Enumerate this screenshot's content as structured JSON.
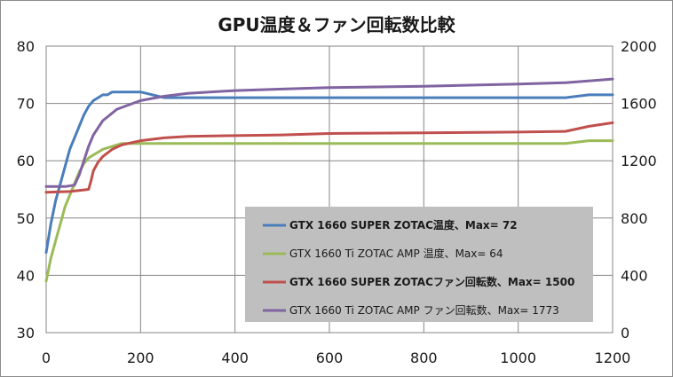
{
  "chart_data": {
    "type": "line",
    "title": "GPU温度＆ファン回転数比較",
    "x_range": [
      0,
      1200
    ],
    "x_ticks": [
      0,
      200,
      400,
      600,
      800,
      1000,
      1200
    ],
    "y_left_range": [
      30,
      80
    ],
    "y_left_ticks": [
      30,
      40,
      50,
      60,
      70,
      80
    ],
    "y_right_range": [
      0,
      2000
    ],
    "y_right_ticks": [
      0,
      400,
      800,
      1200,
      1600,
      2000
    ],
    "grid": true,
    "legend_placement": "bottom-right",
    "series": [
      {
        "name": "GTX 1660 SUPER ZOTAC温度、Max= 72",
        "axis": "left",
        "color": "#4a7ebb",
        "bold": true,
        "x": [
          0,
          10,
          20,
          30,
          40,
          50,
          60,
          70,
          80,
          90,
          100,
          110,
          120,
          130,
          140,
          150,
          160,
          200,
          250,
          300,
          400,
          600,
          800,
          1000,
          1100,
          1150,
          1200
        ],
        "values": [
          44,
          49,
          53,
          56,
          59,
          62,
          64,
          66,
          68,
          69.5,
          70.5,
          71,
          71.5,
          71.5,
          72,
          72,
          72,
          72,
          71,
          71,
          71,
          71,
          71,
          71,
          71,
          71.5,
          71.5
        ]
      },
      {
        "name": "GTX 1660 Ti ZOTAC AMP 温度、Max= 64",
        "axis": "left",
        "color": "#9bbb59",
        "bold": false,
        "x": [
          0,
          10,
          20,
          30,
          40,
          50,
          60,
          70,
          80,
          90,
          100,
          110,
          120,
          140,
          160,
          200,
          300,
          400,
          600,
          800,
          1000,
          1100,
          1150,
          1200
        ],
        "values": [
          39,
          43,
          46,
          49,
          52,
          54,
          56,
          58,
          59.5,
          60.5,
          61,
          61.5,
          62,
          62.5,
          63,
          63,
          63,
          63,
          63,
          63,
          63,
          63,
          63.5,
          63.5
        ]
      },
      {
        "name": "GTX 1660 SUPER ZOTACファン回転数、Max= 1500",
        "axis": "right",
        "color": "#c0504d",
        "bold": true,
        "x": [
          0,
          50,
          90,
          95,
          100,
          110,
          120,
          140,
          160,
          200,
          250,
          300,
          400,
          500,
          600,
          800,
          1000,
          1100,
          1150,
          1200
        ],
        "values": [
          980,
          985,
          1000,
          1060,
          1130,
          1190,
          1230,
          1280,
          1310,
          1340,
          1360,
          1370,
          1375,
          1380,
          1390,
          1395,
          1400,
          1405,
          1440,
          1465
        ]
      },
      {
        "name": "GTX 1660 Ti ZOTAC AMP ファン回転数、Max= 1773",
        "axis": "right",
        "color": "#8064a2",
        "bold": false,
        "x": [
          0,
          40,
          60,
          70,
          80,
          90,
          100,
          120,
          150,
          200,
          250,
          300,
          400,
          500,
          600,
          800,
          1000,
          1100,
          1200
        ],
        "values": [
          1020,
          1020,
          1030,
          1100,
          1200,
          1300,
          1380,
          1480,
          1560,
          1620,
          1650,
          1670,
          1690,
          1700,
          1710,
          1720,
          1735,
          1745,
          1770
        ]
      }
    ]
  }
}
